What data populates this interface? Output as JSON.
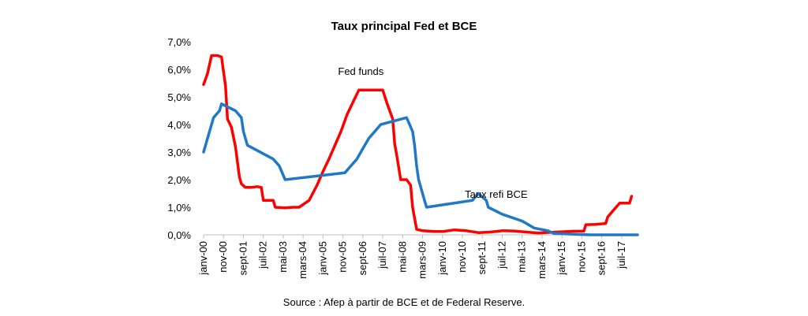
{
  "chart_data": {
    "type": "line",
    "title": "Taux principal Fed et BCE",
    "source": "Source : Afep à partir de BCE et de Federal Reserve.",
    "xlabel": "",
    "ylabel": "",
    "ylim": [
      0,
      7
    ],
    "xlim": [
      "2000-01",
      "2018-03"
    ],
    "y_ticks": [
      "0,0%",
      "1,0%",
      "2,0%",
      "3,0%",
      "4,0%",
      "5,0%",
      "6,0%",
      "7,0%"
    ],
    "x_ticks": [
      "janv-00",
      "nov-00",
      "sept-01",
      "juil-02",
      "mai-03",
      "mars-04",
      "janv-05",
      "nov-05",
      "sept-06",
      "juil-07",
      "mai-08",
      "mars-09",
      "janv-10",
      "nov-10",
      "sept-11",
      "juil-12",
      "mai-13",
      "mars-14",
      "janv-15",
      "nov-15",
      "sept-16",
      "juil-17"
    ],
    "grid": false,
    "series": [
      {
        "name": "Fed funds",
        "color": "#ff0000",
        "points": [
          [
            "2000-01",
            5.45
          ],
          [
            "2000-03",
            5.85
          ],
          [
            "2000-05",
            6.5
          ],
          [
            "2000-08",
            6.5
          ],
          [
            "2000-10",
            6.45
          ],
          [
            "2000-12",
            5.4
          ],
          [
            "2001-01",
            4.2
          ],
          [
            "2001-03",
            3.9
          ],
          [
            "2001-05",
            3.2
          ],
          [
            "2001-07",
            2.1
          ],
          [
            "2001-08",
            1.85
          ],
          [
            "2001-10",
            1.72
          ],
          [
            "2002-01",
            1.72
          ],
          [
            "2002-04",
            1.75
          ],
          [
            "2002-06",
            1.72
          ],
          [
            "2002-07",
            1.25
          ],
          [
            "2002-12",
            1.25
          ],
          [
            "2003-01",
            1.0
          ],
          [
            "2003-06",
            0.98
          ],
          [
            "2003-10",
            1.0
          ],
          [
            "2004-01",
            1.0
          ],
          [
            "2004-06",
            1.25
          ],
          [
            "2004-10",
            1.8
          ],
          [
            "2005-01",
            2.3
          ],
          [
            "2005-04",
            2.75
          ],
          [
            "2005-07",
            3.25
          ],
          [
            "2005-10",
            3.75
          ],
          [
            "2006-01",
            4.35
          ],
          [
            "2006-04",
            4.8
          ],
          [
            "2006-07",
            5.25
          ],
          [
            "2006-09",
            5.25
          ],
          [
            "2007-07",
            5.25
          ],
          [
            "2007-09",
            4.8
          ],
          [
            "2007-12",
            4.2
          ],
          [
            "2008-01",
            3.3
          ],
          [
            "2008-02",
            2.9
          ],
          [
            "2008-04",
            2.0
          ],
          [
            "2008-07",
            2.0
          ],
          [
            "2008-09",
            1.8
          ],
          [
            "2008-10",
            1.0
          ],
          [
            "2008-12",
            0.2
          ],
          [
            "2009-03",
            0.15
          ],
          [
            "2009-09",
            0.12
          ],
          [
            "2010-01",
            0.12
          ],
          [
            "2010-07",
            0.18
          ],
          [
            "2011-01",
            0.15
          ],
          [
            "2011-07",
            0.08
          ],
          [
            "2012-01",
            0.1
          ],
          [
            "2012-07",
            0.15
          ],
          [
            "2013-01",
            0.14
          ],
          [
            "2013-07",
            0.1
          ],
          [
            "2014-01",
            0.07
          ],
          [
            "2014-07",
            0.09
          ],
          [
            "2015-01",
            0.11
          ],
          [
            "2015-07",
            0.13
          ],
          [
            "2015-12",
            0.13
          ],
          [
            "2016-01",
            0.37
          ],
          [
            "2016-06",
            0.38
          ],
          [
            "2016-11",
            0.41
          ],
          [
            "2016-12",
            0.65
          ],
          [
            "2017-03",
            0.9
          ],
          [
            "2017-06",
            1.15
          ],
          [
            "2017-11",
            1.15
          ],
          [
            "2017-12",
            1.4
          ]
        ]
      },
      {
        "name": "Taux refi BCE",
        "color": "#1f78c8",
        "points": [
          [
            "2000-01",
            3.0
          ],
          [
            "2000-02",
            3.25
          ],
          [
            "2000-03",
            3.5
          ],
          [
            "2000-04",
            3.75
          ],
          [
            "2000-06",
            4.25
          ],
          [
            "2000-09",
            4.5
          ],
          [
            "2000-10",
            4.75
          ],
          [
            "2001-05",
            4.5
          ],
          [
            "2001-08",
            4.25
          ],
          [
            "2001-09",
            3.75
          ],
          [
            "2001-11",
            3.25
          ],
          [
            "2002-12",
            2.75
          ],
          [
            "2003-03",
            2.5
          ],
          [
            "2003-06",
            2.0
          ],
          [
            "2005-12",
            2.25
          ],
          [
            "2006-03",
            2.5
          ],
          [
            "2006-06",
            2.75
          ],
          [
            "2006-08",
            3.0
          ],
          [
            "2006-10",
            3.25
          ],
          [
            "2006-12",
            3.5
          ],
          [
            "2007-03",
            3.75
          ],
          [
            "2007-06",
            4.0
          ],
          [
            "2008-07",
            4.25
          ],
          [
            "2008-10",
            3.75
          ],
          [
            "2008-11",
            3.25
          ],
          [
            "2008-12",
            2.5
          ],
          [
            "2009-01",
            2.0
          ],
          [
            "2009-03",
            1.5
          ],
          [
            "2009-04",
            1.25
          ],
          [
            "2009-05",
            1.0
          ],
          [
            "2011-04",
            1.25
          ],
          [
            "2011-07",
            1.5
          ],
          [
            "2011-11",
            1.25
          ],
          [
            "2011-12",
            1.0
          ],
          [
            "2012-07",
            0.75
          ],
          [
            "2013-05",
            0.5
          ],
          [
            "2013-11",
            0.25
          ],
          [
            "2014-06",
            0.15
          ],
          [
            "2014-09",
            0.05
          ],
          [
            "2016-03",
            0.0
          ],
          [
            "2018-03",
            0.0
          ]
        ]
      }
    ],
    "annotations": [
      {
        "text": "Fed funds",
        "x": "2006-08",
        "y": 5.8
      },
      {
        "text": "Taux refi BCE",
        "x": "2012-04",
        "y": 1.35
      }
    ]
  }
}
